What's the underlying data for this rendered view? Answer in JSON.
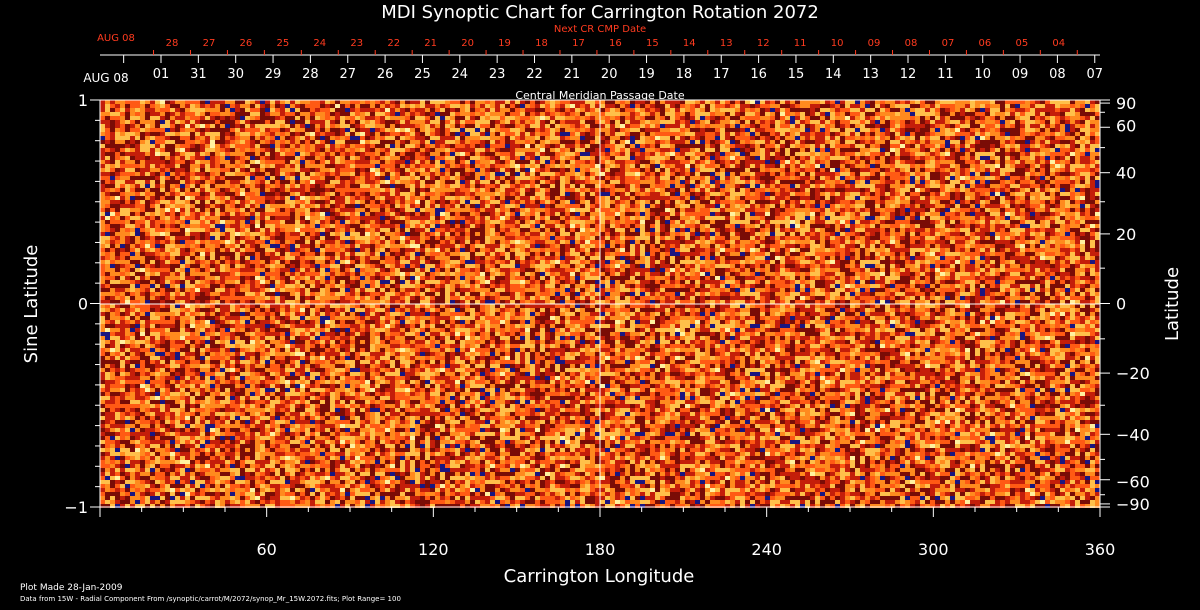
{
  "chart_data": {
    "type": "heatmap",
    "title": "MDI Synoptic Chart for Carrington Rotation 2072",
    "xlabel": "Carrington Longitude",
    "ylabel_left": "Sine Latitude",
    "ylabel_right": "Latitude",
    "top_axis_title": "Central Meridian Passage Date",
    "next_axis_title": "Next CR CMP Date",
    "xlim": [
      0,
      360
    ],
    "ylim": [
      -1,
      1
    ],
    "x_ticks": [
      60,
      120,
      180,
      240,
      300,
      360
    ],
    "y_ticks_left": [
      1,
      0,
      -1
    ],
    "y_ticks_right": [
      90,
      60,
      40,
      20,
      0,
      -20,
      -40,
      -60,
      -90
    ],
    "cmp_first_label": "AUG 08",
    "cmp_dates": [
      "01",
      "31",
      "30",
      "29",
      "28",
      "27",
      "26",
      "25",
      "24",
      "23",
      "22",
      "21",
      "20",
      "19",
      "18",
      "17",
      "16",
      "15",
      "14",
      "13",
      "12",
      "11",
      "10",
      "09",
      "08",
      "07"
    ],
    "next_first_label": "AUG 08",
    "next_dates": [
      "28",
      "27",
      "26",
      "25",
      "24",
      "23",
      "22",
      "21",
      "20",
      "19",
      "18",
      "17",
      "16",
      "15",
      "14",
      "13",
      "12",
      "11",
      "10",
      "09",
      "08",
      "07",
      "06",
      "05",
      "04"
    ],
    "grid": {
      "vertical_at": 180,
      "horizontal_at": 0
    },
    "colormap": [
      "#7a0c06",
      "#c41e0a",
      "#ff5a14",
      "#ff8a1e",
      "#ffc04a"
    ],
    "negative_color": "#1a1680",
    "positive_color": "#fff2a0"
  },
  "footer": {
    "plot_made": "Plot Made 28-Jan-2009",
    "data_line": "Data from 15W - Radial Component From /synoptic/carrot/M/2072/synop_Mr_15W.2072.fits; Plot Range= 100"
  }
}
